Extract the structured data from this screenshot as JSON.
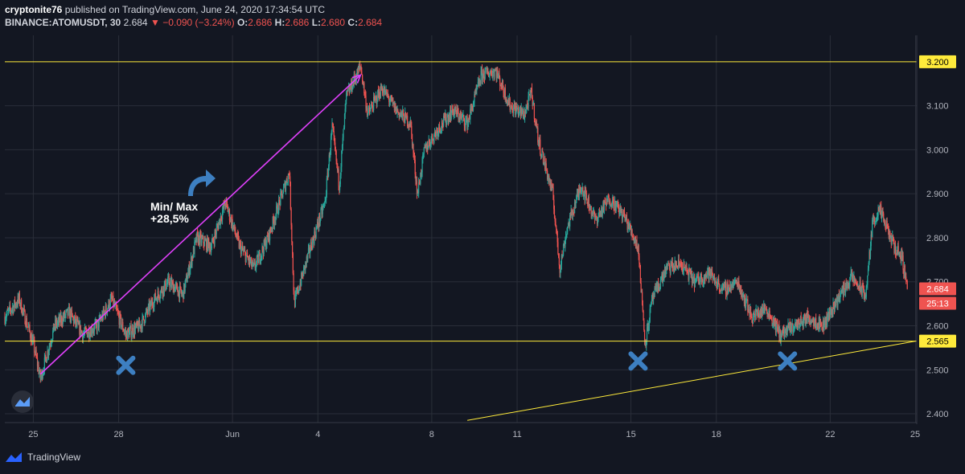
{
  "header": {
    "author": "cryptonite76",
    "published_text": "published on TradingView.com, June 24, 2020 17:34:54 UTC",
    "symbol": "BINANCE:ATOMUSDT, 30",
    "last": "2.684",
    "change": "−0.090 (−3.24%)",
    "o_label": "O:",
    "o_value": "2.686",
    "h_label": "H:",
    "h_value": "2.686",
    "l_label": "L:",
    "l_value": "2.680",
    "c_label": "C:",
    "c_value": "2.684"
  },
  "annotation": {
    "line1": "Min/ Max",
    "line2": "+28,5%"
  },
  "footer": {
    "brand": "TradingView"
  },
  "price_axis": {
    "ticks": [
      "2.400",
      "2.500",
      "2.600",
      "2.700",
      "2.800",
      "2.900",
      "3.000",
      "3.100"
    ],
    "label_high": "3.200",
    "label_last": "2.684",
    "label_timer": "25:13",
    "label_low": "2.565"
  },
  "time_axis": {
    "ticks": [
      "25",
      "28",
      "Jun",
      "4",
      "8",
      "11",
      "15",
      "18",
      "22",
      "25"
    ]
  },
  "colors": {
    "background": "#131722",
    "grid": "#2a2e39",
    "up": "#26a69a",
    "down": "#ef5350",
    "level_line": "#ffeb3b",
    "trend_arrow": "#e040fb",
    "marker": "#3d7fc1"
  },
  "chart_data": {
    "type": "candlestick",
    "symbol": "BINANCE:ATOMUSDT",
    "interval": "30",
    "ylim": [
      2.38,
      3.26
    ],
    "price_path": [
      [
        "May 24 00:00",
        2.62
      ],
      [
        "May 24 12:00",
        2.66
      ],
      [
        "May 25 00:00",
        2.56
      ],
      [
        "May 25 06:00",
        2.48
      ],
      [
        "May 25 18:00",
        2.6
      ],
      [
        "May 26 06:00",
        2.63
      ],
      [
        "May 26 18:00",
        2.58
      ],
      [
        "May 27 06:00",
        2.6
      ],
      [
        "May 27 18:00",
        2.66
      ],
      [
        "May 28 06:00",
        2.58
      ],
      [
        "May 28 18:00",
        2.6
      ],
      [
        "May 29 06:00",
        2.66
      ],
      [
        "May 29 18:00",
        2.7
      ],
      [
        "May 30 06:00",
        2.67
      ],
      [
        "May 30 18:00",
        2.8
      ],
      [
        "May 31 06:00",
        2.78
      ],
      [
        "May 31 18:00",
        2.88
      ],
      [
        "Jun 1 06:00",
        2.78
      ],
      [
        "Jun 1 18:00",
        2.73
      ],
      [
        "Jun 2 06:00",
        2.8
      ],
      [
        "Jun 2 18:00",
        2.9
      ],
      [
        "Jun 3 00:00",
        2.95
      ],
      [
        "Jun 3 04:00",
        2.65
      ],
      [
        "Jun 3 18:00",
        2.78
      ],
      [
        "Jun 4 06:00",
        2.88
      ],
      [
        "Jun 4 12:00",
        3.05
      ],
      [
        "Jun 4 18:00",
        2.92
      ],
      [
        "Jun 5 00:00",
        3.12
      ],
      [
        "Jun 5 12:00",
        3.19
      ],
      [
        "Jun 5 18:00",
        3.08
      ],
      [
        "Jun 6 06:00",
        3.14
      ],
      [
        "Jun 6 18:00",
        3.09
      ],
      [
        "Jun 7 06:00",
        3.06
      ],
      [
        "Jun 7 12:00",
        2.9
      ],
      [
        "Jun 7 18:00",
        3.0
      ],
      [
        "Jun 8 06:00",
        3.05
      ],
      [
        "Jun 8 18:00",
        3.09
      ],
      [
        "Jun 9 06:00",
        3.06
      ],
      [
        "Jun 9 18:00",
        3.17
      ],
      [
        "Jun 10 06:00",
        3.18
      ],
      [
        "Jun 10 18:00",
        3.1
      ],
      [
        "Jun 11 06:00",
        3.08
      ],
      [
        "Jun 11 12:00",
        3.13
      ],
      [
        "Jun 11 18:00",
        3.02
      ],
      [
        "Jun 12 06:00",
        2.9
      ],
      [
        "Jun 12 12:00",
        2.73
      ],
      [
        "Jun 12 18:00",
        2.82
      ],
      [
        "Jun 13 06:00",
        2.92
      ],
      [
        "Jun 13 18:00",
        2.84
      ],
      [
        "Jun 14 06:00",
        2.89
      ],
      [
        "Jun 14 18:00",
        2.85
      ],
      [
        "Jun 15 06:00",
        2.78
      ],
      [
        "Jun 15 12:00",
        2.56
      ],
      [
        "Jun 15 18:00",
        2.66
      ],
      [
        "Jun 16 06:00",
        2.73
      ],
      [
        "Jun 16 18:00",
        2.74
      ],
      [
        "Jun 17 06:00",
        2.7
      ],
      [
        "Jun 17 18:00",
        2.72
      ],
      [
        "Jun 18 06:00",
        2.68
      ],
      [
        "Jun 18 18:00",
        2.7
      ],
      [
        "Jun 19 06:00",
        2.62
      ],
      [
        "Jun 19 18:00",
        2.64
      ],
      [
        "Jun 20 06:00",
        2.58
      ],
      [
        "Jun 20 18:00",
        2.6
      ],
      [
        "Jun 21 06:00",
        2.62
      ],
      [
        "Jun 21 18:00",
        2.6
      ],
      [
        "Jun 22 06:00",
        2.66
      ],
      [
        "Jun 22 18:00",
        2.71
      ],
      [
        "Jun 23 06:00",
        2.67
      ],
      [
        "Jun 23 12:00",
        2.84
      ],
      [
        "Jun 23 18:00",
        2.86
      ],
      [
        "Jun 24 06:00",
        2.78
      ],
      [
        "Jun 24 12:00",
        2.76
      ],
      [
        "Jun 24 17:30",
        2.684
      ]
    ],
    "horizontal_levels": [
      3.2,
      2.565
    ],
    "trend_line": {
      "from": [
        "Jun 9 06:00",
        2.385
      ],
      "to": [
        "Jun 25 00:00",
        2.565
      ]
    },
    "arrow": {
      "from": [
        "May 25 06:00",
        2.49
      ],
      "to": [
        "Jun 5 12:00",
        3.17
      ]
    },
    "markers": [
      [
        "May 28 06:00",
        2.51
      ],
      [
        "Jun 15 06:00",
        2.52
      ],
      [
        "Jun 20 12:00",
        2.52
      ]
    ]
  }
}
